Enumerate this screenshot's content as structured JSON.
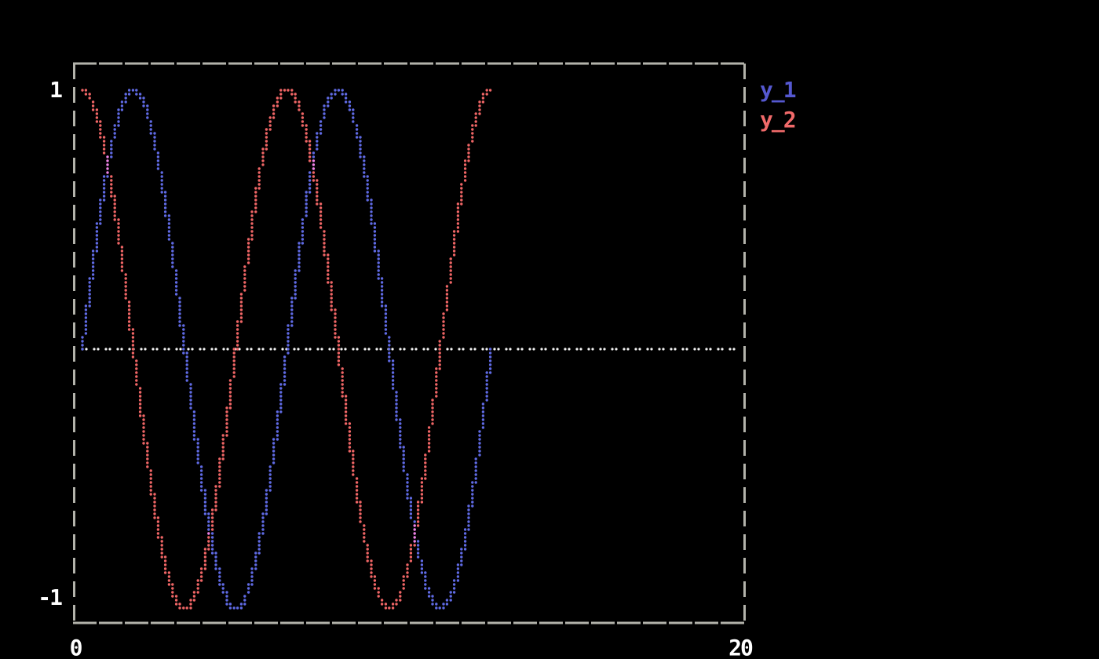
{
  "axes": {
    "y_max_label": "1",
    "y_min_label": "-1",
    "x_min_label": "0",
    "x_max_label": "20"
  },
  "legend": [
    {
      "label": "y_1",
      "color": "#5558d0"
    },
    {
      "label": "y_2",
      "color": "#f16a6a"
    }
  ],
  "colors": {
    "background": "#000000",
    "border": "#b3b3ab",
    "zero_line": "#f2f2f2",
    "text": "#ffffff",
    "overlap": "#ee82e6"
  },
  "chart_data": {
    "type": "scatter",
    "style": "terminal-braille-dots",
    "title": "",
    "xlabel": "",
    "ylabel": "",
    "xlim": [
      0,
      20
    ],
    "ylim": [
      -1,
      1
    ],
    "grid": false,
    "zero_line": true,
    "legend_position": "outside-top-right",
    "x_ticks": [
      0,
      20
    ],
    "y_ticks": [
      1,
      -1
    ],
    "overlap_color": "#ee82e6",
    "x": [
      0,
      0.196,
      0.393,
      0.589,
      0.785,
      0.982,
      1.178,
      1.374,
      1.571,
      1.767,
      1.963,
      2.16,
      2.356,
      2.553,
      2.749,
      2.945,
      3.142,
      3.338,
      3.534,
      3.731,
      3.927,
      4.123,
      4.32,
      4.516,
      4.712,
      4.909,
      5.105,
      5.301,
      5.498,
      5.694,
      5.89,
      6.087,
      6.283,
      6.48,
      6.676,
      6.872,
      7.069,
      7.265,
      7.461,
      7.658,
      7.854,
      8.05,
      8.247,
      8.443,
      8.639,
      8.836,
      9.032,
      9.228,
      9.425,
      9.621,
      9.817,
      10.014,
      10.21,
      10.407,
      10.603,
      10.799,
      10.996,
      11.192,
      11.388,
      11.585,
      11.781,
      11.977,
      12.174,
      12.37,
      12.566
    ],
    "series": [
      {
        "name": "y_1",
        "fn": "sin(x)",
        "color": "#5f6ae4",
        "values": [
          0,
          0.195,
          0.383,
          0.556,
          0.707,
          0.831,
          0.924,
          0.981,
          1,
          0.981,
          0.924,
          0.831,
          0.707,
          0.556,
          0.383,
          0.195,
          0,
          -0.195,
          -0.383,
          -0.556,
          -0.707,
          -0.831,
          -0.924,
          -0.981,
          -1,
          -0.981,
          -0.924,
          -0.831,
          -0.707,
          -0.556,
          -0.383,
          -0.195,
          0,
          0.195,
          0.383,
          0.556,
          0.707,
          0.831,
          0.924,
          0.981,
          1,
          0.981,
          0.924,
          0.831,
          0.707,
          0.556,
          0.383,
          0.195,
          0,
          -0.195,
          -0.383,
          -0.556,
          -0.707,
          -0.831,
          -0.924,
          -0.981,
          -1,
          -0.981,
          -0.924,
          -0.831,
          -0.707,
          -0.556,
          -0.383,
          -0.195,
          0
        ]
      },
      {
        "name": "y_2",
        "fn": "cos(x)",
        "color": "#ef6565",
        "values": [
          1,
          0.981,
          0.924,
          0.831,
          0.707,
          0.556,
          0.383,
          0.195,
          0,
          -0.195,
          -0.383,
          -0.556,
          -0.707,
          -0.831,
          -0.924,
          -0.981,
          -1,
          -0.981,
          -0.924,
          -0.831,
          -0.707,
          -0.556,
          -0.383,
          -0.195,
          0,
          0.195,
          0.383,
          0.556,
          0.707,
          0.831,
          0.924,
          0.981,
          1,
          0.981,
          0.924,
          0.831,
          0.707,
          0.556,
          0.383,
          0.195,
          0,
          -0.195,
          -0.383,
          -0.556,
          -0.707,
          -0.831,
          -0.924,
          -0.981,
          -1,
          -0.981,
          -0.924,
          -0.831,
          -0.707,
          -0.556,
          -0.383,
          -0.195,
          0,
          0.195,
          0.383,
          0.556,
          0.707,
          0.831,
          0.924,
          0.981,
          1
        ]
      }
    ]
  }
}
